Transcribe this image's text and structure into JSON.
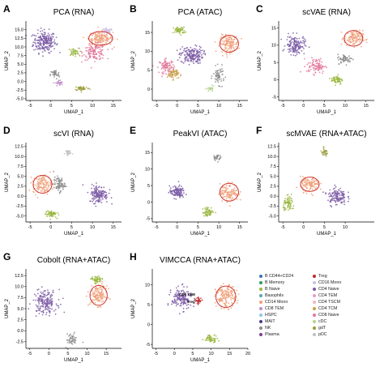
{
  "chart_data": [
    {
      "type": "scatter",
      "panel_letter": "A",
      "title": "PCA (RNA)",
      "xlabel": "UMAP_1",
      "ylabel": "UMAP_2",
      "xlim": [
        -6,
        17
      ],
      "ylim": [
        -5.5,
        17.5
      ],
      "xticks": [
        -5,
        0,
        5,
        10,
        15
      ],
      "yticks": [
        -5.0,
        -2.5,
        0.0,
        2.5,
        5.0,
        7.5,
        10.0,
        12.5,
        15.0
      ],
      "clusters": [
        {
          "cell_type": "CD4 Naive",
          "x": -1.5,
          "y": 11.5,
          "spread_x": 3.0,
          "spread_y": 3.5,
          "n": 220
        },
        {
          "cell_type": "CD14 Mono",
          "x": 12.0,
          "y": 12.5,
          "spread_x": 3.2,
          "spread_y": 2.2,
          "n": 150
        },
        {
          "cell_type": "CD16 Mono",
          "x": 13.5,
          "y": 14.5,
          "spread_x": 1.5,
          "spread_y": 1.0,
          "n": 40
        },
        {
          "cell_type": "CD8 Naive",
          "x": 10.5,
          "y": 8.5,
          "spread_x": 3.0,
          "spread_y": 2.5,
          "n": 130
        },
        {
          "cell_type": "B Naive",
          "x": 5.5,
          "y": 8.5,
          "spread_x": 1.5,
          "spread_y": 1.2,
          "n": 40
        },
        {
          "cell_type": "NK",
          "x": 1.0,
          "y": 2.0,
          "spread_x": 1.2,
          "spread_y": 1.5,
          "n": 40
        },
        {
          "cell_type": "gdT",
          "x": 7.5,
          "y": -2.0,
          "spread_x": 2.0,
          "spread_y": 0.8,
          "n": 40
        },
        {
          "cell_type": "CD8 TEM",
          "x": 2.0,
          "y": -0.5,
          "spread_x": 1.0,
          "spread_y": 1.0,
          "n": 30
        }
      ]
    },
    {
      "type": "scatter",
      "panel_letter": "B",
      "title": "PCA (ATAC)",
      "xlabel": "UMAP_1",
      "ylabel": "UMAP_2",
      "xlim": [
        -6,
        17
      ],
      "ylim": [
        -3,
        18
      ],
      "xticks": [
        -5,
        0,
        5,
        10,
        15
      ],
      "yticks": [
        0,
        5,
        10,
        15
      ],
      "clusters": [
        {
          "cell_type": "CD4 Naive",
          "x": 3.5,
          "y": 9.0,
          "spread_x": 3.0,
          "spread_y": 2.5,
          "n": 180
        },
        {
          "cell_type": "B Naive",
          "x": 0.5,
          "y": 15.5,
          "spread_x": 1.5,
          "spread_y": 1.0,
          "n": 60
        },
        {
          "cell_type": "CD14 Mono",
          "x": 12.5,
          "y": 12.0,
          "spread_x": 2.5,
          "spread_y": 2.5,
          "n": 140
        },
        {
          "cell_type": "CD8 Naive",
          "x": -2.5,
          "y": 6.0,
          "spread_x": 2.0,
          "spread_y": 2.0,
          "n": 90
        },
        {
          "cell_type": "CD4 TCM",
          "x": -1.0,
          "y": 4.0,
          "spread_x": 1.5,
          "spread_y": 1.5,
          "n": 60
        },
        {
          "cell_type": "NK",
          "x": 10.0,
          "y": 3.5,
          "spread_x": 1.5,
          "spread_y": 2.5,
          "n": 60
        },
        {
          "cell_type": "cDC",
          "x": 8.0,
          "y": 0.0,
          "spread_x": 1.0,
          "spread_y": 0.8,
          "n": 25
        }
      ]
    },
    {
      "type": "scatter",
      "panel_letter": "C",
      "title": "scVAE (RNA)",
      "xlabel": "UMAP_1",
      "ylabel": "UMAP_2",
      "xlim": [
        -6,
        17
      ],
      "ylim": [
        -6,
        17
      ],
      "xticks": [
        -5,
        0,
        5,
        10,
        15
      ],
      "yticks": [
        -5,
        0,
        5,
        10,
        15
      ],
      "clusters": [
        {
          "cell_type": "CD4 Naive",
          "x": -2.0,
          "y": 10.0,
          "spread_x": 2.5,
          "spread_y": 3.0,
          "n": 150
        },
        {
          "cell_type": "CD14 Mono",
          "x": 12.0,
          "y": 12.0,
          "spread_x": 2.5,
          "spread_y": 2.5,
          "n": 120
        },
        {
          "cell_type": "CD8 Naive",
          "x": 3.0,
          "y": 4.0,
          "spread_x": 2.5,
          "spread_y": 2.5,
          "n": 90
        },
        {
          "cell_type": "B Naive",
          "x": 8.0,
          "y": 0.0,
          "spread_x": 1.5,
          "spread_y": 1.5,
          "n": 60
        },
        {
          "cell_type": "NK",
          "x": 10.0,
          "y": 6.0,
          "spread_x": 2.0,
          "spread_y": 1.5,
          "n": 60
        }
      ]
    },
    {
      "type": "scatter",
      "panel_letter": "D",
      "title": "scVI (RNA)",
      "xlabel": "UMAP_1",
      "ylabel": "UMAP_2",
      "xlim": [
        -6,
        17
      ],
      "ylim": [
        -6.5,
        13.5
      ],
      "xticks": [
        -5,
        0,
        5,
        10,
        15
      ],
      "yticks": [
        -5.0,
        -2.5,
        0.0,
        2.5,
        5.0,
        7.5,
        10.0,
        12.5
      ],
      "clusters": [
        {
          "cell_type": "CD4 Naive",
          "x": 11.5,
          "y": 0.5,
          "spread_x": 2.5,
          "spread_y": 2.5,
          "n": 150
        },
        {
          "cell_type": "CD14 Mono",
          "x": -2.0,
          "y": 3.0,
          "spread_x": 2.5,
          "spread_y": 2.5,
          "n": 120
        },
        {
          "cell_type": "NK",
          "x": 2.0,
          "y": 3.0,
          "spread_x": 1.5,
          "spread_y": 2.0,
          "n": 80
        },
        {
          "cell_type": "B Naive",
          "x": 0.0,
          "y": -4.5,
          "spread_x": 1.5,
          "spread_y": 1.0,
          "n": 60
        },
        {
          "cell_type": "pDC",
          "x": 4.0,
          "y": 11.0,
          "spread_x": 0.8,
          "spread_y": 0.8,
          "n": 25
        }
      ]
    },
    {
      "type": "scatter",
      "panel_letter": "E",
      "title": "PeakVI (ATAC)",
      "xlabel": "UMAP_1",
      "ylabel": "UMAP_2",
      "xlim": [
        -6,
        17
      ],
      "ylim": [
        -6,
        18
      ],
      "xticks": [
        -5,
        0,
        5,
        10,
        15
      ],
      "yticks": [
        -5,
        0,
        5,
        10,
        15
      ],
      "clusters": [
        {
          "cell_type": "CD4 Naive",
          "x": 0.0,
          "y": 3.0,
          "spread_x": 2.0,
          "spread_y": 2.0,
          "n": 120
        },
        {
          "cell_type": "CD14 Mono",
          "x": 12.5,
          "y": 3.0,
          "spread_x": 2.5,
          "spread_y": 3.0,
          "n": 120
        },
        {
          "cell_type": "B Naive",
          "x": 7.5,
          "y": -3.0,
          "spread_x": 1.5,
          "spread_y": 1.5,
          "n": 60
        },
        {
          "cell_type": "NK",
          "x": 9.5,
          "y": 13.5,
          "spread_x": 1.0,
          "spread_y": 1.0,
          "n": 30
        }
      ]
    },
    {
      "type": "scatter",
      "panel_letter": "F",
      "title": "scMVAE (RNA+ATAC)",
      "xlabel": "UMAP_1",
      "ylabel": "UMAP_2",
      "xlim": [
        -6,
        17
      ],
      "ylim": [
        -6.5,
        13.5
      ],
      "xticks": [
        -5,
        0,
        5,
        10
      ],
      "yticks": [
        -5.0,
        -2.5,
        0.0,
        2.5,
        5.0,
        7.5,
        10.0,
        12.5
      ],
      "clusters": [
        {
          "cell_type": "CD4 Naive",
          "x": 8.0,
          "y": 0.0,
          "spread_x": 2.5,
          "spread_y": 2.5,
          "n": 130
        },
        {
          "cell_type": "CD14 Mono",
          "x": 1.5,
          "y": 3.0,
          "spread_x": 2.5,
          "spread_y": 2.0,
          "n": 110
        },
        {
          "cell_type": "B Naive",
          "x": -3.5,
          "y": -2.0,
          "spread_x": 1.5,
          "spread_y": 2.0,
          "n": 70
        },
        {
          "cell_type": "gdT",
          "x": 5.0,
          "y": 11.0,
          "spread_x": 1.0,
          "spread_y": 1.0,
          "n": 30
        }
      ]
    },
    {
      "type": "scatter",
      "panel_letter": "G",
      "title": "Cobolt (RNA+ATAC)",
      "xlabel": "UMAP_1",
      "ylabel": "UMAP_2",
      "xlim": [
        -6,
        19
      ],
      "ylim": [
        -4,
        14
      ],
      "xticks": [
        -5,
        0,
        5,
        10,
        15
      ],
      "yticks": [
        -2.5,
        0.0,
        2.5,
        5.0,
        7.5,
        10.0,
        12.5
      ],
      "clusters": [
        {
          "cell_type": "CD4 Naive",
          "x": -1.0,
          "y": 6.5,
          "spread_x": 3.5,
          "spread_y": 3.0,
          "n": 180
        },
        {
          "cell_type": "CD14 Mono",
          "x": 13.0,
          "y": 8.0,
          "spread_x": 2.5,
          "spread_y": 2.5,
          "n": 130
        },
        {
          "cell_type": "B Naive",
          "x": 12.5,
          "y": 11.5,
          "spread_x": 1.5,
          "spread_y": 1.0,
          "n": 60
        },
        {
          "cell_type": "NK",
          "x": 6.0,
          "y": -2.0,
          "spread_x": 1.5,
          "spread_y": 1.5,
          "n": 50
        }
      ]
    },
    {
      "type": "scatter",
      "panel_letter": "H",
      "title": "VIMCCA (RNA+ATAC)",
      "xlabel": "UMAP_1",
      "ylabel": "UMAP_2",
      "xlim": [
        -6,
        20
      ],
      "ylim": [
        -6,
        14
      ],
      "xticks": [
        -5,
        0,
        5,
        10,
        15,
        20
      ],
      "yticks": [
        -5,
        0,
        5,
        10
      ],
      "annotations": [
        "CD4 TEM",
        "Treg"
      ],
      "clusters": [
        {
          "cell_type": "CD4 Naive",
          "x": 2.0,
          "y": 6.5,
          "spread_x": 3.0,
          "spread_y": 3.0,
          "n": 160
        },
        {
          "cell_type": "CD14 Mono",
          "x": 14.0,
          "y": 7.0,
          "spread_x": 3.0,
          "spread_y": 3.0,
          "n": 150
        },
        {
          "cell_type": "B Naive",
          "x": 10.0,
          "y": -3.5,
          "spread_x": 2.0,
          "spread_y": 1.0,
          "n": 60
        },
        {
          "cell_type": "Treg",
          "x": 6.5,
          "y": 6.0,
          "spread_x": 1.0,
          "spread_y": 1.0,
          "n": 30
        }
      ]
    }
  ],
  "legend": {
    "items": [
      {
        "label": "B CD44+CD24",
        "color": "#3b74b8"
      },
      {
        "label": "B Memory",
        "color": "#2e9e5a"
      },
      {
        "label": "B Naive",
        "color": "#9ab73f"
      },
      {
        "label": "Basophils",
        "color": "#5aa8a0"
      },
      {
        "label": "CD14 Mono",
        "color": "#f0a07a"
      },
      {
        "label": "CD8 TEM",
        "color": "#c08ec8"
      },
      {
        "label": "HSPC",
        "color": "#86c7e8"
      },
      {
        "label": "MAIT",
        "color": "#4b3a8a"
      },
      {
        "label": "NK",
        "color": "#8b8b8b"
      },
      {
        "label": "Plasma",
        "color": "#7d3f8f"
      },
      {
        "label": "Treg",
        "color": "#c0282d"
      },
      {
        "label": "CD16 Mono",
        "color": "#cfc0e3"
      },
      {
        "label": "CD4 Naive",
        "color": "#7b5aa6"
      },
      {
        "label": "CD4 TEM",
        "color": "#e89bc6"
      },
      {
        "label": "CD4 TSCM",
        "color": "#f4b6bb"
      },
      {
        "label": "CD4 TCM",
        "color": "#c9a04a"
      },
      {
        "label": "CD8 Naive",
        "color": "#e2779a"
      },
      {
        "label": "cDC",
        "color": "#b3d28f"
      },
      {
        "label": "gdT",
        "color": "#9a9a3a"
      },
      {
        "label": "pDC",
        "color": "#bfbfbf"
      }
    ]
  }
}
